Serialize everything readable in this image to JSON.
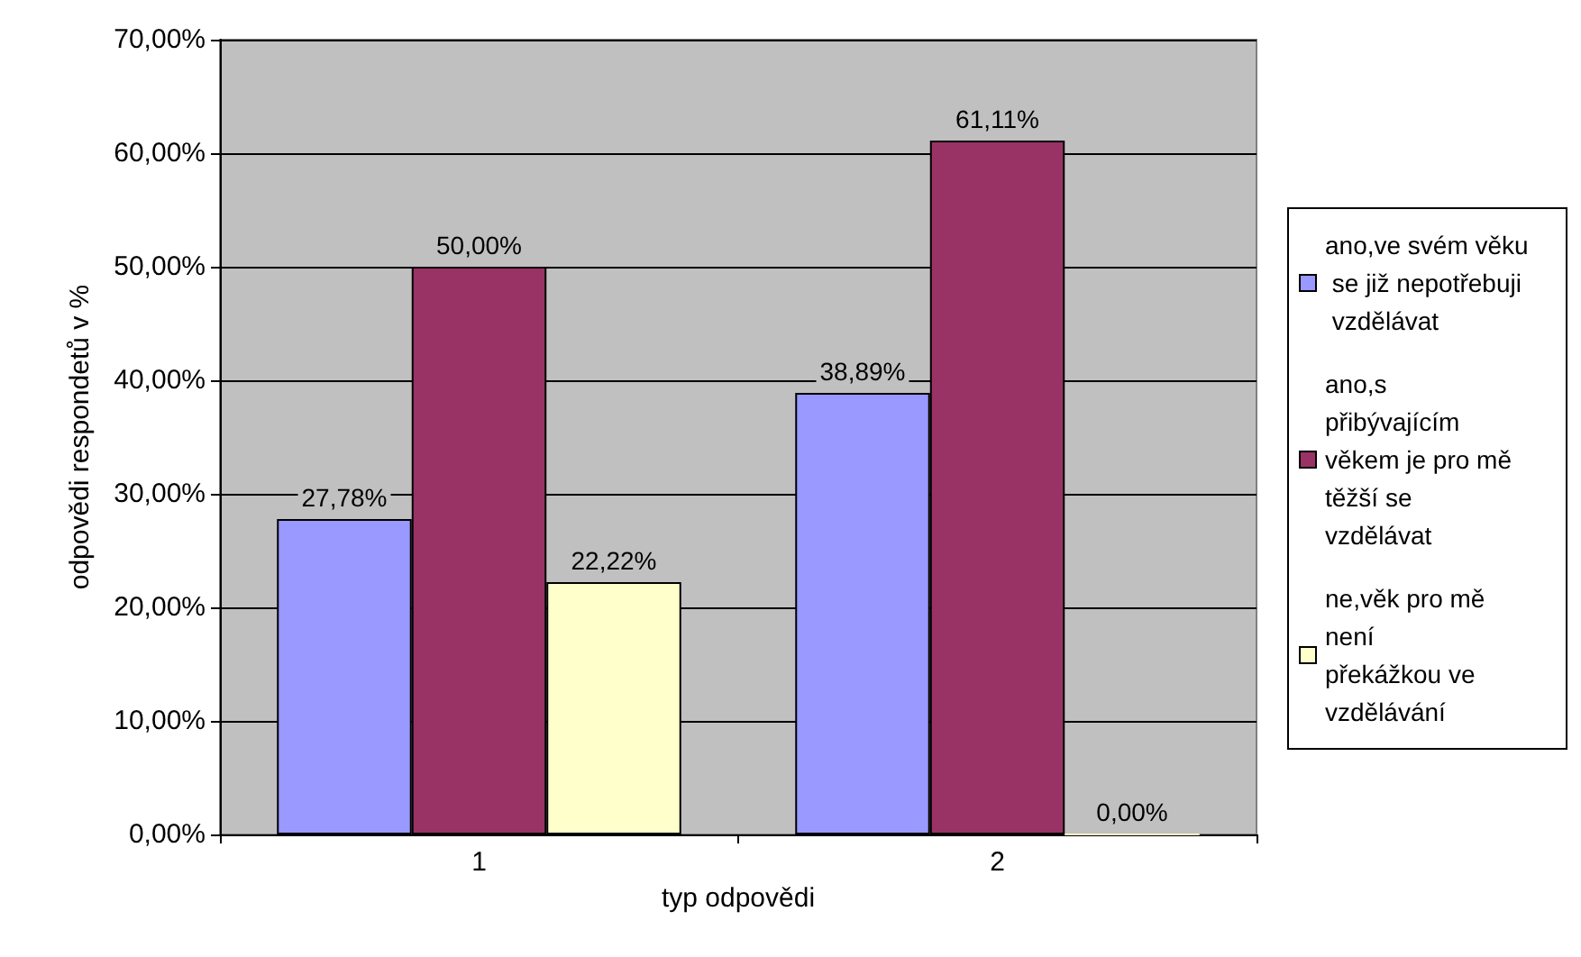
{
  "chart_data": {
    "type": "bar",
    "xlabel": "typ odpovědi",
    "ylabel": "odpovědi respondetů v %",
    "categories": [
      "1",
      "2"
    ],
    "series": [
      {
        "name": "ano,ve svém věku se již nepotřebuji vzdělávat",
        "color": "#9999ff",
        "values": [
          27.78,
          38.89
        ],
        "value_labels": [
          "27,78%",
          "38,89%"
        ]
      },
      {
        "name": "ano,s přibývajícím věkem je pro mě těžší se vzdělávat",
        "color": "#993366",
        "values": [
          50.0,
          61.11
        ],
        "value_labels": [
          "50,00%",
          "61,11%"
        ]
      },
      {
        "name": "ne,věk pro mě není překážkou ve vzdělávání",
        "color": "#ffffcc",
        "values": [
          22.22,
          0.0
        ],
        "value_labels": [
          "22,22%",
          "0,00%"
        ]
      }
    ],
    "ylim": [
      0,
      70
    ],
    "yticks": [
      {
        "value": 0,
        "label": "0,00%"
      },
      {
        "value": 10,
        "label": "10,00%"
      },
      {
        "value": 20,
        "label": "20,00%"
      },
      {
        "value": 30,
        "label": "30,00%"
      },
      {
        "value": 40,
        "label": "40,00%"
      },
      {
        "value": 50,
        "label": "50,00%"
      },
      {
        "value": 60,
        "label": "60,00%"
      },
      {
        "value": 70,
        "label": "70,00%"
      }
    ],
    "grid": "y",
    "legend": "right"
  }
}
